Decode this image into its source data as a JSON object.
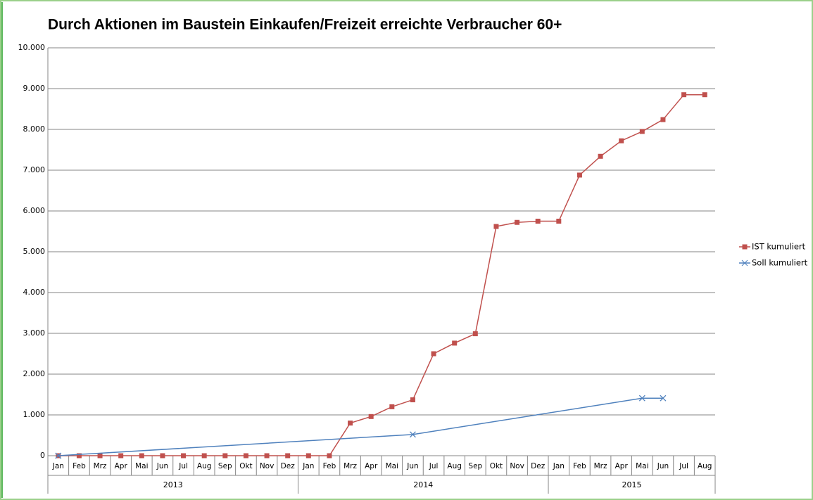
{
  "chart_data": {
    "type": "line",
    "title": "Durch Aktionen im Baustein Einkaufen/Freizeit erreichte Verbraucher 60+",
    "category_groups": [
      {
        "label": "2013",
        "categories": [
          "Jan",
          "Feb",
          "Mrz",
          "Apr",
          "Mai",
          "Jun",
          "Jul",
          "Aug",
          "Sep",
          "Okt",
          "Nov",
          "Dez"
        ]
      },
      {
        "label": "2014",
        "categories": [
          "Jan",
          "Feb",
          "Mrz",
          "Apr",
          "Mai",
          "Jun",
          "Jul",
          "Aug",
          "Sep",
          "Okt",
          "Nov",
          "Dez"
        ]
      },
      {
        "label": "2015",
        "categories": [
          "Jan",
          "Feb",
          "Mrz",
          "Apr",
          "Mai",
          "Jun",
          "Jul",
          "Aug"
        ]
      }
    ],
    "series": [
      {
        "name": "IST kumuliert",
        "color": "#c0504d",
        "marker": "square",
        "values": [
          0,
          0,
          0,
          0,
          0,
          0,
          0,
          0,
          0,
          0,
          0,
          0,
          0,
          0,
          800,
          960,
          1200,
          1370,
          2500,
          2760,
          2990,
          5620,
          5720,
          5750,
          5750,
          6880,
          7340,
          7720,
          7950,
          8240,
          8850,
          8850
        ]
      },
      {
        "name": "Soll kumuliert",
        "color": "#4f81bd",
        "marker": "x",
        "connect_gaps": true,
        "values": [
          0,
          null,
          null,
          null,
          null,
          null,
          null,
          null,
          null,
          null,
          null,
          null,
          null,
          null,
          null,
          null,
          null,
          520,
          null,
          null,
          null,
          null,
          null,
          null,
          null,
          null,
          null,
          null,
          1410,
          1410,
          null,
          null
        ]
      }
    ],
    "ylim": [
      0,
      10000
    ],
    "yticks": [
      0,
      {
        "value": 1000,
        "label": "1.000"
      },
      {
        "value": 2000,
        "label": "2.000"
      },
      {
        "value": 3000,
        "label": "3.000"
      },
      {
        "value": 4000,
        "label": "4.000"
      },
      {
        "value": 5000,
        "label": "5.000"
      },
      {
        "value": 6000,
        "label": "6.000"
      },
      {
        "value": 7000,
        "label": "7.000"
      },
      {
        "value": 8000,
        "label": "8.000"
      },
      {
        "value": 9000,
        "label": "9.000"
      },
      {
        "value": 10000,
        "label": "10.000"
      }
    ],
    "grid": true,
    "legend": "right"
  }
}
